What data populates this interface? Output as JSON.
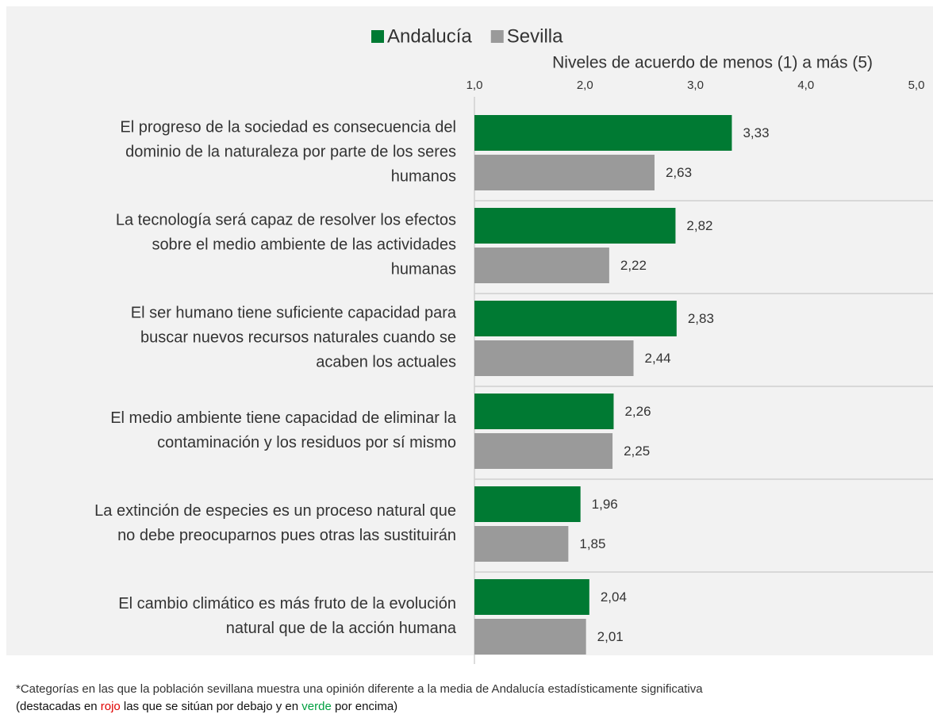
{
  "chart_data": {
    "type": "barh",
    "axis_title": "Niveles de acuerdo de menos (1) a más (5)",
    "categories": [
      [
        "El progreso de la sociedad es consecuencia del",
        "dominio de la naturaleza por parte de los seres",
        "humanos"
      ],
      [
        "La tecnología será capaz de resolver los efectos",
        "sobre el medio ambiente de las actividades",
        "humanas"
      ],
      [
        "El ser humano tiene suficiente capacidad para",
        "buscar nuevos recursos naturales cuando se",
        "acaben los actuales"
      ],
      [
        "El medio ambiente tiene capacidad de eliminar la",
        "contaminación y los residuos por sí mismo"
      ],
      [
        "La extinción de especies es un proceso natural que",
        "no debe preocuparnos pues otras las sustituirán"
      ],
      [
        "El cambio climático es más fruto de la evolución",
        "natural que de la acción humana"
      ]
    ],
    "series": [
      {
        "name": "Andalucía",
        "color": "#007a33",
        "values": [
          3.33,
          2.82,
          2.83,
          2.26,
          1.96,
          2.04
        ],
        "value_labels": [
          "3,33",
          "2,82",
          "2,83",
          "2,26",
          "1,96",
          "2,04"
        ],
        "value_label_colors": [
          "#333333",
          "#333333",
          "#333333",
          "#333333",
          "#333333",
          "#333333"
        ]
      },
      {
        "name": "Sevilla",
        "color": "#9a9a9a",
        "values": [
          2.63,
          2.22,
          2.44,
          2.25,
          1.85,
          2.01
        ],
        "value_labels": [
          "2,63",
          "2,22",
          "2,44",
          "2,25",
          "1,85",
          "2,01"
        ],
        "value_label_colors": [
          "#e00000",
          "#e00000",
          "#e00000",
          "#333333",
          "#333333",
          "#333333"
        ]
      }
    ],
    "xlim": [
      1,
      5
    ],
    "xticks": [
      {
        "value": 1,
        "label": "1,0"
      },
      {
        "value": 2,
        "label": "2,0"
      },
      {
        "value": 3,
        "label": "3,0"
      },
      {
        "value": 4,
        "label": "4,0"
      },
      {
        "value": 5,
        "label": "5,0"
      }
    ],
    "legend": "top",
    "footnote": [
      "*Categorías en las que la población sevillana muestra una opinión diferente a la media de Andalucía estadísticamente significativa",
      "(destacadas en ",
      "rojo",
      " las que se sitúan por debajo y en ",
      "verde",
      " por encima)"
    ],
    "footnote_colors": [
      "#111111",
      "#111111",
      "#e00000",
      "#111111",
      "#00a040",
      "#111111"
    ]
  }
}
